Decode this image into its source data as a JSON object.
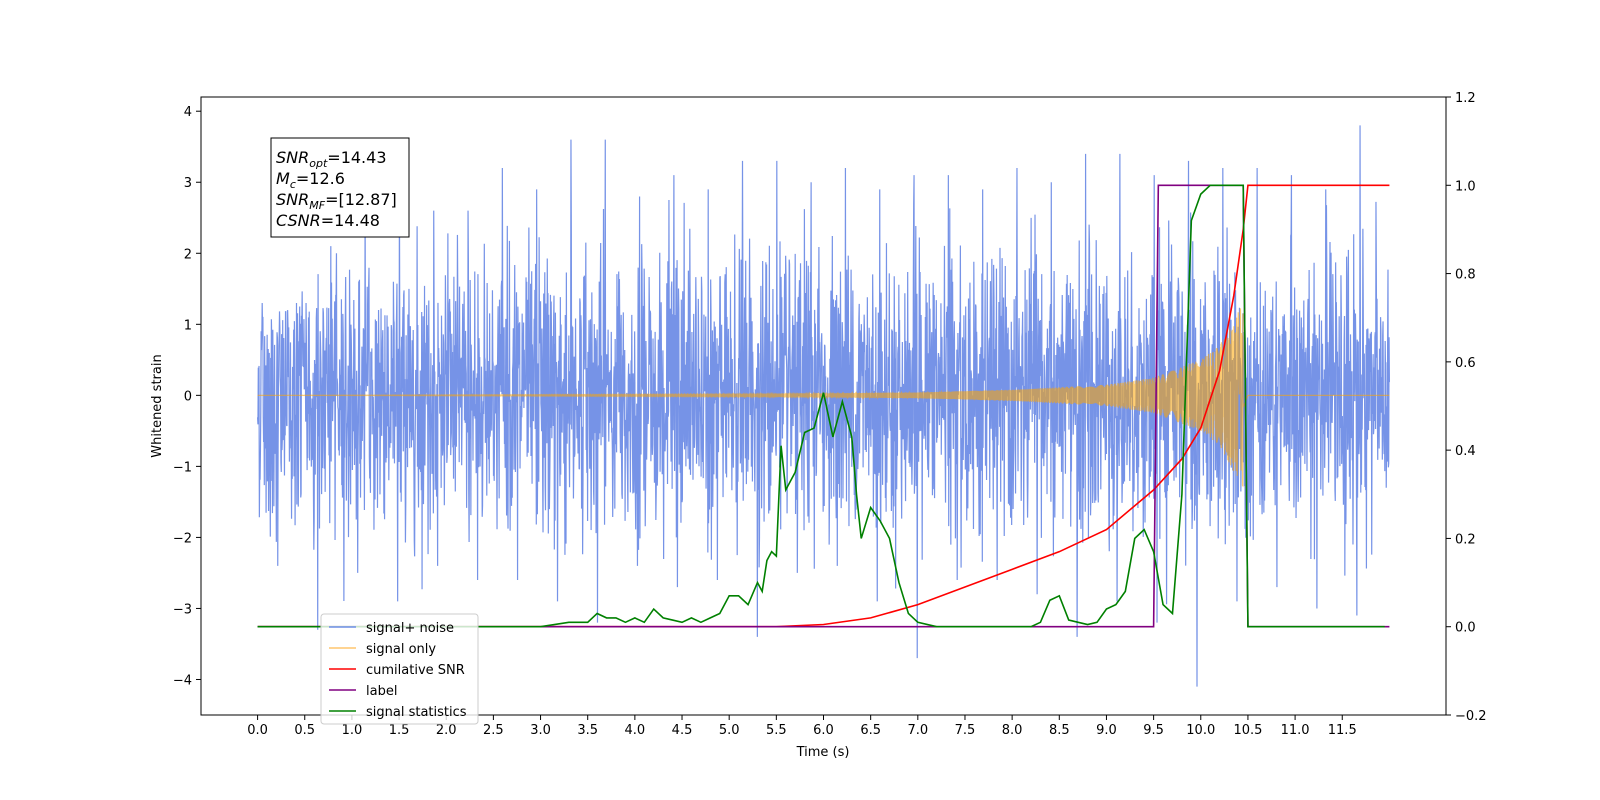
{
  "chart_data": {
    "type": "line",
    "xlabel": "Time (s)",
    "ylabel_left": "Whitened strain",
    "ylabel_right": "",
    "xlim": [
      -0.6,
      12.6
    ],
    "ylim_left": [
      -4.5,
      4.2
    ],
    "ylim_right": [
      -0.2,
      1.2
    ],
    "x_ticks": [
      0.0,
      0.5,
      1.0,
      1.5,
      2.0,
      2.5,
      3.0,
      3.5,
      4.0,
      4.5,
      5.0,
      5.5,
      6.0,
      6.5,
      7.0,
      7.5,
      8.0,
      8.5,
      9.0,
      9.5,
      10.0,
      10.5,
      11.0,
      11.5
    ],
    "x_tick_labels": [
      "0.0",
      "0.5",
      "1.0",
      "1.5",
      "2.0",
      "2.5",
      "3.0",
      "3.5",
      "4.0",
      "4.5",
      "5.0",
      "5.5",
      "6.0",
      "6.5",
      "7.0",
      "7.5",
      "8.0",
      "8.5",
      "9.0",
      "9.5",
      "10.0",
      "10.5",
      "11.0",
      "11.5"
    ],
    "y_left_ticks": [
      -4,
      -3,
      -2,
      -1,
      0,
      1,
      2,
      3,
      4
    ],
    "y_left_tick_labels": [
      "−4",
      "−3",
      "−2",
      "−1",
      "0",
      "1",
      "2",
      "3",
      "4"
    ],
    "y_right_ticks": [
      -0.2,
      0.0,
      0.2,
      0.4,
      0.6,
      0.8,
      1.0,
      1.2
    ],
    "y_right_tick_labels": [
      "−0.2",
      "0.0",
      "0.2",
      "0.4",
      "0.6",
      "0.8",
      "1.0",
      "1.2"
    ],
    "grid": false,
    "legend_position": "lower-left",
    "annotation": {
      "lines": [
        {
          "sym": "SNR",
          "sub": "opt",
          "value": "=14.43"
        },
        {
          "sym": "M",
          "sub": "c",
          "value": "=12.6"
        },
        {
          "sym": "SNR",
          "sub": "MF",
          "value": "=[12.87]"
        },
        {
          "sym": "CSNR",
          "sub": "",
          "value": "=14.48"
        }
      ]
    },
    "series": [
      {
        "name": "signal+ noise",
        "axis": "left",
        "color": "#6f8de6",
        "kind": "noise_band",
        "x_range": [
          0.0,
          12.0
        ],
        "upper_envelope": [
          1.3,
          2.1,
          2.7,
          3.0,
          2.6,
          3.2,
          2.9,
          3.6,
          2.8,
          3.1,
          2.9,
          3.3,
          3.0,
          3.2,
          2.9,
          3.1,
          2.9,
          3.2,
          3.0,
          3.4,
          3.1,
          3.3,
          3.2,
          3.1,
          2.9,
          3.8
        ],
        "lower_envelope": [
          -2.4,
          -3.3,
          -2.5,
          -2.9,
          -2.4,
          -2.6,
          -2.9,
          -3.2,
          -2.4,
          -2.7,
          -2.6,
          -3.4,
          -2.5,
          -2.4,
          -2.9,
          -3.7,
          -2.6,
          -2.8,
          -3.4,
          -2.9,
          -3.2,
          -4.1,
          -2.9,
          -2.7,
          -3.0,
          -3.1
        ]
      },
      {
        "name": "signal only",
        "axis": "left",
        "color": "#ffa500",
        "kind": "chirp",
        "x_range": [
          0.0,
          12.0
        ],
        "merger_time": 10.45,
        "envelope_points": {
          "t": [
            0.0,
            5.5,
            7.0,
            8.0,
            9.0,
            9.5,
            10.0,
            10.2,
            10.4,
            10.45,
            10.5,
            12.0
          ],
          "amplitude": [
            0.0,
            0.02,
            0.04,
            0.08,
            0.15,
            0.25,
            0.5,
            0.7,
            1.2,
            1.3,
            0.0,
            0.0
          ]
        }
      },
      {
        "name": "cumilative SNR",
        "axis": "right",
        "color": "#ff0000",
        "x": [
          0.0,
          5.5,
          6.0,
          6.5,
          7.0,
          7.5,
          8.0,
          8.5,
          9.0,
          9.5,
          9.8,
          10.0,
          10.2,
          10.35,
          10.45,
          10.5,
          11.0,
          12.0
        ],
        "y": [
          0.0,
          0.0,
          0.005,
          0.02,
          0.05,
          0.09,
          0.13,
          0.17,
          0.22,
          0.31,
          0.38,
          0.45,
          0.58,
          0.75,
          0.9,
          1.0,
          1.0,
          1.0
        ]
      },
      {
        "name": "label",
        "axis": "right",
        "color": "#800080",
        "x": [
          0.0,
          9.5,
          9.55,
          10.45,
          10.5,
          12.0
        ],
        "y": [
          0.0,
          0.0,
          1.0,
          1.0,
          0.0,
          0.0
        ]
      },
      {
        "name": "signal statistics",
        "axis": "right",
        "color": "#008000",
        "x": [
          0.0,
          3.0,
          3.3,
          3.5,
          3.6,
          3.7,
          3.8,
          3.9,
          4.0,
          4.1,
          4.2,
          4.3,
          4.4,
          4.5,
          4.6,
          4.7,
          4.8,
          4.9,
          5.0,
          5.1,
          5.2,
          5.3,
          5.35,
          5.4,
          5.45,
          5.5,
          5.55,
          5.6,
          5.7,
          5.8,
          5.9,
          6.0,
          6.1,
          6.2,
          6.3,
          6.35,
          6.4,
          6.5,
          6.6,
          6.7,
          6.8,
          6.9,
          7.0,
          7.2,
          7.5,
          8.0,
          8.2,
          8.3,
          8.4,
          8.5,
          8.6,
          8.7,
          8.8,
          8.9,
          9.0,
          9.1,
          9.2,
          9.3,
          9.4,
          9.5,
          9.6,
          9.7,
          9.8,
          9.9,
          10.0,
          10.1,
          10.2,
          10.3,
          10.4,
          10.45,
          10.5,
          11.0,
          11.5,
          11.95
        ],
        "y": [
          0.0,
          0.0,
          0.01,
          0.01,
          0.03,
          0.02,
          0.02,
          0.01,
          0.02,
          0.01,
          0.04,
          0.02,
          0.015,
          0.01,
          0.02,
          0.01,
          0.02,
          0.03,
          0.07,
          0.07,
          0.05,
          0.1,
          0.08,
          0.15,
          0.17,
          0.16,
          0.41,
          0.31,
          0.35,
          0.44,
          0.45,
          0.53,
          0.43,
          0.51,
          0.43,
          0.3,
          0.2,
          0.27,
          0.24,
          0.2,
          0.1,
          0.03,
          0.01,
          0.0,
          0.0,
          0.0,
          0.0,
          0.01,
          0.06,
          0.07,
          0.015,
          0.01,
          0.005,
          0.01,
          0.04,
          0.05,
          0.08,
          0.2,
          0.22,
          0.17,
          0.05,
          0.03,
          0.3,
          0.92,
          0.98,
          1.0,
          1.0,
          1.0,
          1.0,
          1.0,
          0.0,
          0.0,
          0.0,
          0.0
        ]
      }
    ],
    "legend": [
      {
        "label": "signal+ noise",
        "color": "#6f8de6"
      },
      {
        "label": "signal only",
        "color": "#ffc66e"
      },
      {
        "label": "cumilative SNR",
        "color": "#ff0000"
      },
      {
        "label": "label",
        "color": "#800080"
      },
      {
        "label": "signal statistics",
        "color": "#008000"
      }
    ]
  }
}
